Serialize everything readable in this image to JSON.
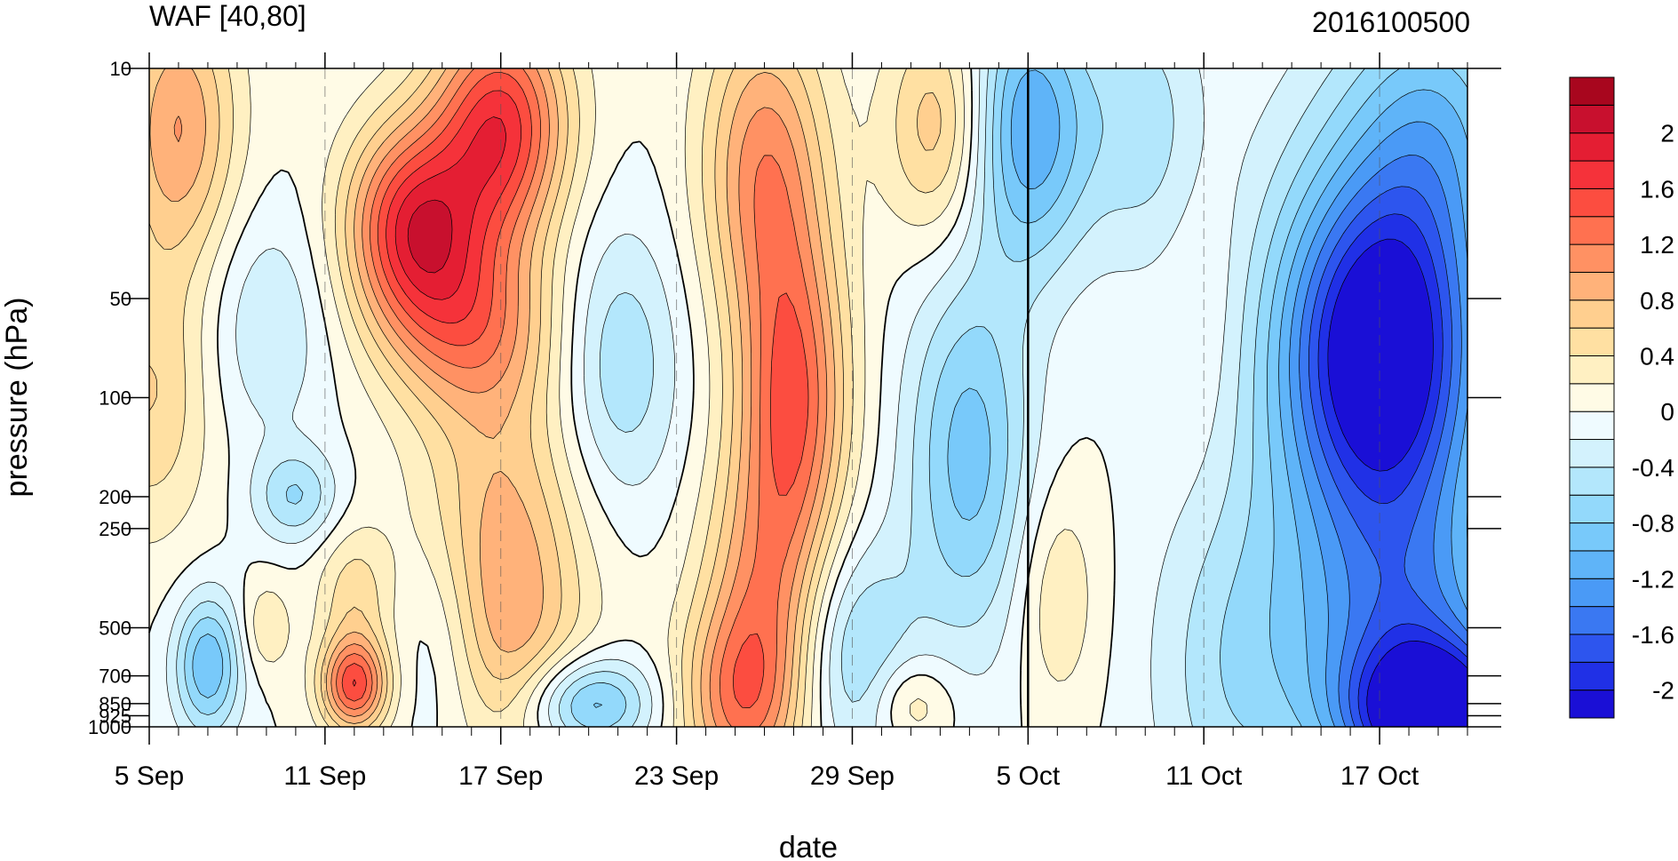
{
  "chart_data": {
    "type": "heatmap",
    "title_left": "WAF [40,80]",
    "title_right": "2016100500",
    "xlabel": "date",
    "ylabel": "pressure (hPa)",
    "x_start": "2016-09-05",
    "x_end": "2016-10-20",
    "x_tick_labels": [
      "5 Sep",
      "11 Sep",
      "17 Sep",
      "23 Sep",
      "29 Sep",
      "5 Oct",
      "11 Oct",
      "17 Oct"
    ],
    "x_tick_dates": [
      "2016-09-05",
      "2016-09-11",
      "2016-09-17",
      "2016-09-23",
      "2016-09-29",
      "2016-10-05",
      "2016-10-11",
      "2016-10-17"
    ],
    "y_scale": "log",
    "y_inverted": true,
    "y_range": [
      1000,
      10
    ],
    "y_ticks": [
      10,
      50,
      100,
      200,
      250,
      500,
      700,
      850,
      925,
      1000
    ],
    "y_tick_labels": [
      "10",
      "50",
      "100",
      "200",
      "250",
      "500",
      "700",
      "850",
      "925",
      "1000"
    ],
    "vertical_line_date": "2016-10-05",
    "levels": [
      -2.2,
      -2.0,
      -1.8,
      -1.6,
      -1.4,
      -1.2,
      -1.0,
      -0.8,
      -0.6,
      -0.4,
      -0.2,
      0,
      0.2,
      0.4,
      0.6,
      0.8,
      1.0,
      1.2,
      1.4,
      1.6,
      1.8,
      2.0,
      2.2
    ],
    "colorbar_labels": [
      "2",
      "1.6",
      "1.2",
      "0.8",
      "0.4",
      "0",
      "-0.4",
      "-0.8",
      "-1.2",
      "-1.6",
      "-2"
    ],
    "colors": [
      "#1a0fd6",
      "#2030e6",
      "#2d55ee",
      "#3a78f2",
      "#4a9af6",
      "#5fb4f8",
      "#78c9fa",
      "#93d9fb",
      "#b3e7fc",
      "#d3f2fd",
      "#effbff",
      "#fffbe6",
      "#fff0c2",
      "#ffe0a2",
      "#ffcf8f",
      "#ffb27a",
      "#ff9163",
      "#ff7150",
      "#fc4d40",
      "#f5323a",
      "#e41e33",
      "#c8102e",
      "#a8061e"
    ],
    "features": [
      {
        "date": "2016-09-14",
        "p": 30,
        "value": 1.7,
        "sigma_days": 1.6,
        "sigma_logp": 0.22
      },
      {
        "date": "2016-09-17",
        "p": 15,
        "value": 1.7,
        "sigma_days": 1.6,
        "sigma_logp": 0.25
      },
      {
        "date": "2016-09-16",
        "p": 60,
        "value": 1.0,
        "sigma_days": 2.0,
        "sigma_logp": 0.2
      },
      {
        "date": "2016-09-17",
        "p": 250,
        "value": 0.8,
        "sigma_days": 2.0,
        "sigma_logp": 0.35
      },
      {
        "date": "2016-09-17",
        "p": 600,
        "value": 0.5,
        "sigma_days": 2.0,
        "sigma_logp": 0.25
      },
      {
        "date": "2016-09-26",
        "p": 20,
        "value": 1.1,
        "sigma_days": 1.5,
        "sigma_logp": 0.35
      },
      {
        "date": "2016-09-27",
        "p": 100,
        "value": 1.3,
        "sigma_days": 1.3,
        "sigma_logp": 0.35
      },
      {
        "date": "2016-09-26",
        "p": 450,
        "value": 1.0,
        "sigma_days": 1.5,
        "sigma_logp": 0.35
      },
      {
        "date": "2016-09-25",
        "p": 850,
        "value": 0.8,
        "sigma_days": 1.4,
        "sigma_logp": 0.2
      },
      {
        "date": "2016-09-06",
        "p": 15,
        "value": 1.0,
        "sigma_days": 1.4,
        "sigma_logp": 0.3
      },
      {
        "date": "2016-09-05",
        "p": 100,
        "value": 0.6,
        "sigma_days": 1.5,
        "sigma_logp": 0.3
      },
      {
        "date": "2016-09-12",
        "p": 750,
        "value": 1.5,
        "sigma_days": 0.8,
        "sigma_logp": 0.1
      },
      {
        "date": "2016-09-12",
        "p": 400,
        "value": 0.5,
        "sigma_days": 0.9,
        "sigma_logp": 0.15
      },
      {
        "date": "2016-10-02",
        "p": 15,
        "value": 0.8,
        "sigma_days": 1.3,
        "sigma_logp": 0.25
      },
      {
        "date": "2016-10-11",
        "p": 50,
        "value": 0.15,
        "sigma_days": 1.0,
        "sigma_logp": 0.4
      },
      {
        "date": "2016-10-06",
        "p": 400,
        "value": 0.4,
        "sigma_days": 1.0,
        "sigma_logp": 0.25
      },
      {
        "date": "2016-10-01",
        "p": 850,
        "value": 0.5,
        "sigma_days": 1.0,
        "sigma_logp": 0.1
      },
      {
        "date": "2016-09-09",
        "p": 500,
        "value": 0.4,
        "sigma_days": 0.6,
        "sigma_logp": 0.1
      },
      {
        "date": "2016-09-07",
        "p": 650,
        "value": -1.0,
        "sigma_days": 0.8,
        "sigma_logp": 0.15
      },
      {
        "date": "2016-09-09",
        "p": 60,
        "value": -0.4,
        "sigma_days": 1.5,
        "sigma_logp": 0.25
      },
      {
        "date": "2016-09-10",
        "p": 200,
        "value": -0.6,
        "sigma_days": 1.0,
        "sigma_logp": 0.1
      },
      {
        "date": "2016-09-20",
        "p": 850,
        "value": -1.0,
        "sigma_days": 1.5,
        "sigma_logp": 0.1
      },
      {
        "date": "2016-09-15",
        "p": 550,
        "value": -0.5,
        "sigma_days": 1.2,
        "sigma_logp": 0.25
      },
      {
        "date": "2016-09-21",
        "p": 80,
        "value": -0.6,
        "sigma_days": 1.5,
        "sigma_logp": 0.3
      },
      {
        "date": "2016-09-29",
        "p": 600,
        "value": -0.7,
        "sigma_days": 1.5,
        "sigma_logp": 0.25
      },
      {
        "date": "2016-10-03",
        "p": 150,
        "value": -0.9,
        "sigma_days": 1.5,
        "sigma_logp": 0.4
      },
      {
        "date": "2016-10-05",
        "p": 15,
        "value": -1.2,
        "sigma_days": 1.5,
        "sigma_logp": 0.3
      },
      {
        "date": "2016-10-09",
        "p": 15,
        "value": -0.5,
        "sigma_days": 1.5,
        "sigma_logp": 0.3
      },
      {
        "date": "2016-10-12",
        "p": 700,
        "value": -0.5,
        "sigma_days": 2.0,
        "sigma_logp": 0.4
      },
      {
        "date": "2016-10-17",
        "p": 70,
        "value": -1.6,
        "sigma_days": 2.2,
        "sigma_logp": 0.35
      },
      {
        "date": "2016-10-17",
        "p": 100,
        "value": -1.0,
        "sigma_days": 3.0,
        "sigma_logp": 0.6
      },
      {
        "date": "2016-10-19",
        "p": 950,
        "value": -2.0,
        "sigma_days": 2.0,
        "sigma_logp": 0.15
      },
      {
        "date": "2016-10-18",
        "p": 600,
        "value": -1.0,
        "sigma_days": 2.5,
        "sigma_logp": 0.3
      },
      {
        "date": "2016-10-19",
        "p": 15,
        "value": -0.7,
        "sigma_days": 2.0,
        "sigma_logp": 0.3
      }
    ]
  }
}
